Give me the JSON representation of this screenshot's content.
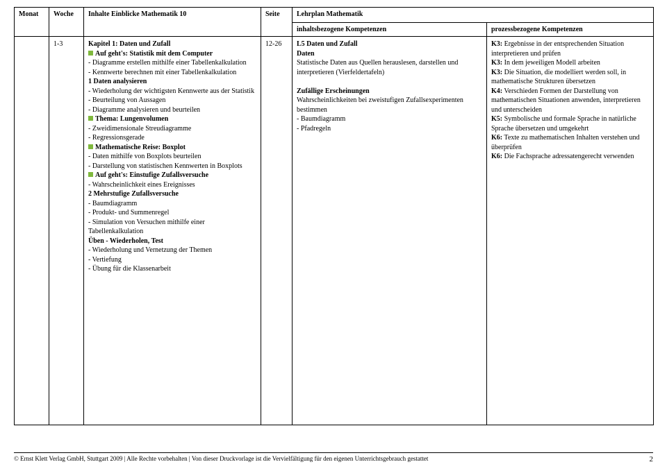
{
  "header": {
    "monat": "Monat",
    "woche": "Woche",
    "inhalte": "Inhalte Einblicke Mathematik 10",
    "seite": "Seite",
    "lehrplan": "Lehrplan Mathematik",
    "sub_inhalt": "inhaltsbezogene Kompetenzen",
    "sub_prozess": "prozessbezogene Kompetenzen"
  },
  "row": {
    "woche": "1-3",
    "seite": "12-26",
    "inhalte": {
      "k_title": "Kapitel 1: Daten und Zufall",
      "g1": "Auf geht's: Statistik mit dem Computer",
      "l1": "- Diagramme erstellen mithilfe einer Tabellenkalkulation",
      "l2": "- Kennwerte berechnen mit einer Tabellenkalkulation",
      "b1": "1 Daten analysieren",
      "l3": " - Wiederholung der wichtigsten Kennwerte aus der Statistik",
      "l4": "- Beurteilung von Aussagen",
      "l5": "- Diagramme analysieren und beurteilen",
      "g2": "Thema: Lungenvolumen",
      "l6": "- Zweidimensionale Streudiagramme",
      "l7": "- Regressionsgerade",
      "g3": "Mathematische Reise: Boxplot",
      "l8": "- Daten mithilfe von Boxplots beurteilen",
      "l9": "- Darstellung von statistischen Kennwerten in Boxplots",
      "g4": "Auf geht's: Einstufige Zufallsversuche",
      "l10": "- Wahrscheinlichkeit eines Ereignisses",
      "b2": "2 Mehrstufige Zufallsversuche",
      "l11": "- Baumdiagramm",
      "l12": "- Produkt- und Summenregel",
      "l13": "- Simulation von Versuchen mithilfe einer Tabellenkalkulation",
      "b3": "Üben - Wiederholen, Test",
      "l14": "- Wiederholung und Vernetzung der Themen",
      "l15": "- Vertiefung",
      "l16": "- Übung für die Klassenarbeit"
    },
    "komp1": {
      "h1": "L5 Daten und Zufall",
      "h2": "Daten",
      "l1": "Statistische Daten  aus Quellen herauslesen, darstellen und interpretieren (Vierfeldertafeln)",
      "h3": "Zufällige Erscheinungen",
      "l2": "Wahrscheinlichkeiten bei zweistufigen Zufallsexperimenten bestimmen",
      "l3": "- Baumdiagramm",
      "l4": "- Pfadregeln"
    },
    "komp2": {
      "l1a": "K3:",
      "l1b": " Ergebnisse in der entsprechenden Situation interpretieren und prüfen",
      "l2a": "K3:",
      "l2b": " In dem jeweiligen Modell arbeiten",
      "l3a": "K3:",
      "l3b": " Die Situation, die modelliert werden soll, in mathematische Strukturen übersetzen",
      "l4a": "K4:",
      "l4b": " Verschieden Formen der Darstellung von mathematischen Situationen anwenden, interpretieren und unterscheiden",
      "l5a": "K5:",
      "l5b": " Symbolische und formale Sprache in natürliche Sprache übersetzen und umgekehrt",
      "l6a": "K6:",
      "l6b": " Texte zu mathematischen Inhalten verstehen und überprüfen",
      "l7a": "K6:",
      "l7b": " Die Fachsprache adressatengerecht verwenden"
    }
  },
  "footer": {
    "copyright": "© Ernst Klett Verlag GmbH, Stuttgart 2009 | Alle Rechte vorbehalten | Von dieser Druckvorlage ist die Vervielfältigung für den eigenen Unterrichtsgebrauch gestattet",
    "page": "2"
  },
  "colors": {
    "bullet": "#7fb83d",
    "border": "#000000",
    "text": "#000000",
    "bg": "#ffffff"
  }
}
